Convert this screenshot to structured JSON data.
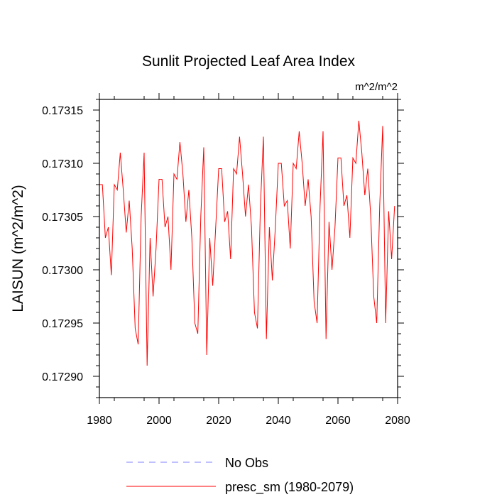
{
  "chart_data": {
    "type": "line",
    "title": "Sunlit Projected Leaf Area Index",
    "subtitle": "m^2/m^2",
    "xlabel": "",
    "ylabel": "LAISUN  (m^2/m^2)",
    "xlim": [
      1980,
      2080
    ],
    "ylim": [
      0.17288,
      0.17316
    ],
    "x_ticks": [
      1980,
      2000,
      2020,
      2040,
      2060,
      2080
    ],
    "y_ticks": [
      0.1729,
      0.17295,
      0.173,
      0.17305,
      0.1731,
      0.17315
    ],
    "x_tick_labels": [
      "1980",
      "2000",
      "2020",
      "2040",
      "2060",
      "2080"
    ],
    "y_tick_labels": [
      "0.17290",
      "0.17295",
      "0.17300",
      "0.17305",
      "0.17310",
      "0.17315"
    ],
    "grid": false,
    "legend_position": "bottom",
    "series": [
      {
        "name": "No Obs",
        "color": "#8080ff",
        "dash": "dashed",
        "x": [],
        "values": []
      },
      {
        "name": "presc_sm (1980-2079)",
        "color": "#ff0000",
        "dash": "solid",
        "x": [
          1980,
          1981,
          1982,
          1983,
          1984,
          1985,
          1986,
          1987,
          1988,
          1989,
          1990,
          1991,
          1992,
          1993,
          1994,
          1995,
          1996,
          1997,
          1998,
          1999,
          2000,
          2001,
          2002,
          2003,
          2004,
          2005,
          2006,
          2007,
          2008,
          2009,
          2010,
          2011,
          2012,
          2013,
          2014,
          2015,
          2016,
          2017,
          2018,
          2019,
          2020,
          2021,
          2022,
          2023,
          2024,
          2025,
          2026,
          2027,
          2028,
          2029,
          2030,
          2031,
          2032,
          2033,
          2034,
          2035,
          2036,
          2037,
          2038,
          2039,
          2040,
          2041,
          2042,
          2043,
          2044,
          2045,
          2046,
          2047,
          2048,
          2049,
          2050,
          2051,
          2052,
          2053,
          2054,
          2055,
          2056,
          2057,
          2058,
          2059,
          2060,
          2061,
          2062,
          2063,
          2064,
          2065,
          2066,
          2067,
          2068,
          2069,
          2070,
          2071,
          2072,
          2073,
          2074,
          2075,
          2076,
          2077,
          2078,
          2079
        ],
        "values": [
          0.17308,
          0.17308,
          0.17303,
          0.17304,
          0.172995,
          0.17308,
          0.173075,
          0.17311,
          0.173075,
          0.173035,
          0.173065,
          0.17302,
          0.172945,
          0.17293,
          0.17305,
          0.17311,
          0.17291,
          0.17303,
          0.172975,
          0.17302,
          0.173085,
          0.173085,
          0.17304,
          0.17305,
          0.173,
          0.17309,
          0.173085,
          0.17312,
          0.17309,
          0.173045,
          0.173075,
          0.17303,
          0.17295,
          0.17294,
          0.17305,
          0.173115,
          0.17292,
          0.17303,
          0.172985,
          0.17304,
          0.173095,
          0.173095,
          0.173045,
          0.173055,
          0.17301,
          0.173095,
          0.17309,
          0.173125,
          0.17309,
          0.17305,
          0.17308,
          0.17304,
          0.17296,
          0.172945,
          0.17306,
          0.173125,
          0.172935,
          0.17304,
          0.17299,
          0.17304,
          0.1731,
          0.1731,
          0.17306,
          0.173065,
          0.17302,
          0.1731,
          0.173095,
          0.17313,
          0.1731,
          0.17306,
          0.173085,
          0.17305,
          0.17297,
          0.17295,
          0.17306,
          0.17313,
          0.172935,
          0.173045,
          0.173,
          0.17304,
          0.173105,
          0.173105,
          0.17306,
          0.17307,
          0.17303,
          0.173105,
          0.1731,
          0.17314,
          0.17311,
          0.17307,
          0.173095,
          0.17305,
          0.172975,
          0.17295,
          0.17306,
          0.173135,
          0.17295,
          0.173055,
          0.17301,
          0.17306
        ]
      }
    ]
  }
}
